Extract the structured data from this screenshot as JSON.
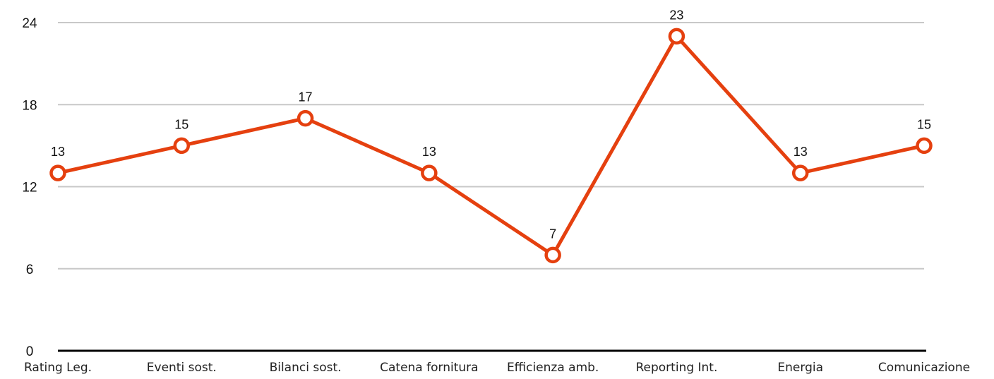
{
  "chart_data": {
    "type": "line",
    "title": "",
    "xlabel": "",
    "ylabel": "",
    "categories": [
      "Rating Leg.",
      "Eventi sost.",
      "Bilanci sost.",
      "Catena fornitura",
      "Efficienza amb.",
      "Reporting Int.",
      "Energia",
      "Comunicazione"
    ],
    "series": [
      {
        "values": [
          13,
          15,
          17,
          13,
          7,
          23,
          13,
          15
        ]
      }
    ],
    "yticks": [
      0,
      6,
      12,
      18,
      24
    ],
    "ylim": [
      0,
      24
    ],
    "grid": true,
    "data_labels": true,
    "legend": "none",
    "colors": {
      "line": "#e5400f",
      "marker_fill": "#ffffff",
      "grid": "#c8c8c8",
      "axis": "#000000"
    }
  }
}
